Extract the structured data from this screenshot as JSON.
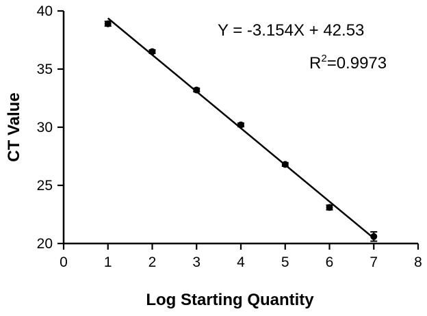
{
  "chart_data": {
    "type": "scatter",
    "xlabel": "Log Starting Quantity",
    "ylabel": "CT Value",
    "xlim": [
      0,
      8
    ],
    "ylim": [
      20,
      40
    ],
    "x_ticks": [
      "0",
      "1",
      "2",
      "3",
      "4",
      "5",
      "6",
      "7",
      "8"
    ],
    "y_ticks": [
      "20",
      "25",
      "30",
      "35",
      "40"
    ],
    "grid": false,
    "legend": "none",
    "points": [
      {
        "x": 1,
        "y": 38.9,
        "err": 0.2
      },
      {
        "x": 2,
        "y": 36.5,
        "err": 0.15
      },
      {
        "x": 3,
        "y": 33.2,
        "err": 0.15
      },
      {
        "x": 4,
        "y": 30.2,
        "err": 0.15
      },
      {
        "x": 5,
        "y": 26.8,
        "err": 0.15
      },
      {
        "x": 6,
        "y": 23.1,
        "err": 0.2
      },
      {
        "x": 7,
        "y": 20.6,
        "err": 0.4
      }
    ],
    "fit": {
      "slope": -3.154,
      "intercept": 42.53,
      "x_range": [
        1,
        7
      ]
    },
    "annotations": {
      "equation": "Y = -3.154X + 42.53",
      "r2_prefix": "R",
      "r2_sup": "2",
      "r2_value": "=0.9973"
    }
  }
}
